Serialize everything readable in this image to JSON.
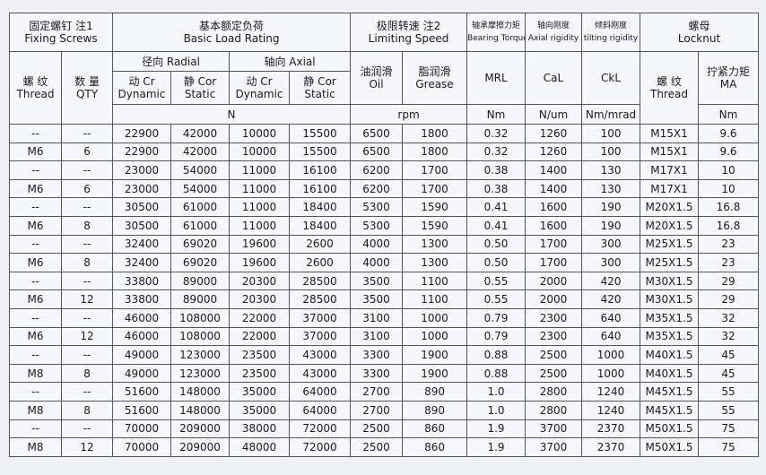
{
  "header": {
    "fixing_screws": {
      "zh": "固定螺钉  注1",
      "en": "Fixing Screws"
    },
    "basic_load_rating": {
      "zh": "基本额定负荷",
      "en": "Basic Load Rating"
    },
    "limiting_speed": {
      "zh": "极限转速  注2",
      "en": "Limiting Speed"
    },
    "bearing_torque": {
      "zh": "轴承摩擦力矩",
      "en": "Bearing Torque"
    },
    "axial_rigidity": {
      "zh": "轴向刚度",
      "en": "Axial rigidity"
    },
    "tilting_rigidity": {
      "zh": "倾斜刚度",
      "en": "tilting rigidity"
    },
    "locknut": {
      "zh": "螺母",
      "en": "Locknut"
    },
    "thread": {
      "zh": "螺 纹",
      "en": "Thread"
    },
    "qty": {
      "zh": "数 量",
      "en": "QTY"
    },
    "radial": "径向 Radial",
    "axial": "轴向 Axial",
    "radial_dynamic": {
      "zh": "动 Cr",
      "en": "Dynamic"
    },
    "radial_static": {
      "zh": "静 Cor",
      "en": "Static"
    },
    "axial_dynamic": {
      "zh": "动 Cr",
      "en": "Dynamic"
    },
    "axial_static": {
      "zh": "静 Cor",
      "en": "Static"
    },
    "oil": {
      "zh": "油润滑",
      "en": "Oil"
    },
    "grease": {
      "zh": "脂润滑",
      "en": "Grease"
    },
    "mrl": "MRL",
    "cal": "CaL",
    "ckl": "CkL",
    "nut_thread": {
      "zh": "螺 纹",
      "en": "Thread"
    },
    "ma": {
      "zh": "拧紧力矩",
      "en": "MA"
    },
    "unit_load": "N",
    "unit_speed": "rpm",
    "unit_torque": "Nm",
    "unit_axial": "N/um",
    "unit_tilt": "Nm/mrad",
    "unit_ma": "Nm"
  },
  "table": {
    "rows": [
      [
        "--",
        "--",
        "22900",
        "42000",
        "10000",
        "15500",
        "6500",
        "1800",
        "0.32",
        "1260",
        "100",
        "M15X1",
        "9.6"
      ],
      [
        "M6",
        "6",
        "22900",
        "42000",
        "10000",
        "15500",
        "6500",
        "1800",
        "0.32",
        "1260",
        "100",
        "M15X1",
        "9.6"
      ],
      [
        "--",
        "--",
        "23000",
        "54000",
        "11000",
        "16100",
        "6200",
        "1700",
        "0.38",
        "1400",
        "130",
        "M17X1",
        "10"
      ],
      [
        "M6",
        "6",
        "23000",
        "54000",
        "11000",
        "16100",
        "6200",
        "1700",
        "0.38",
        "1400",
        "130",
        "M17X1",
        "10"
      ],
      [
        "--",
        "--",
        "30500",
        "61000",
        "11000",
        "18400",
        "5300",
        "1590",
        "0.41",
        "1600",
        "190",
        "M20X1.5",
        "16.8"
      ],
      [
        "M6",
        "8",
        "30500",
        "61000",
        "11000",
        "18400",
        "5300",
        "1590",
        "0.41",
        "1600",
        "190",
        "M20X1.5",
        "16.8"
      ],
      [
        "--",
        "--",
        "32400",
        "69020",
        "19600",
        "2600",
        "4000",
        "1300",
        "0.50",
        "1700",
        "300",
        "M25X1.5",
        "23"
      ],
      [
        "M6",
        "8",
        "32400",
        "69020",
        "19600",
        "2600",
        "4000",
        "1300",
        "0.50",
        "1700",
        "300",
        "M25X1.5",
        "23"
      ],
      [
        "--",
        "--",
        "33800",
        "89000",
        "20300",
        "28500",
        "3500",
        "1100",
        "0.55",
        "2000",
        "420",
        "M30X1.5",
        "29"
      ],
      [
        "M6",
        "12",
        "33800",
        "89000",
        "20300",
        "28500",
        "3500",
        "1100",
        "0.55",
        "2000",
        "420",
        "M30X1.5",
        "29"
      ],
      [
        "--",
        "--",
        "46000",
        "108000",
        "22000",
        "37000",
        "3100",
        "1000",
        "0.79",
        "2300",
        "640",
        "M35X1.5",
        "32"
      ],
      [
        "M6",
        "12",
        "46000",
        "108000",
        "22000",
        "37000",
        "3100",
        "1000",
        "0.79",
        "2300",
        "640",
        "M35X1.5",
        "32"
      ],
      [
        "--",
        "--",
        "49000",
        "123000",
        "23500",
        "43000",
        "3300",
        "1900",
        "0.88",
        "2500",
        "1000",
        "M40X1.5",
        "45"
      ],
      [
        "M8",
        "8",
        "49000",
        "123000",
        "23500",
        "43000",
        "3300",
        "1900",
        "0.88",
        "2500",
        "1000",
        "M40X1.5",
        "45"
      ],
      [
        "--",
        "--",
        "51600",
        "148000",
        "35000",
        "64000",
        "2700",
        "890",
        "1.0",
        "2800",
        "1240",
        "M45X1.5",
        "55"
      ],
      [
        "M8",
        "8",
        "51600",
        "148000",
        "35000",
        "64000",
        "2700",
        "890",
        "1.0",
        "2800",
        "1240",
        "M45X1.5",
        "55"
      ],
      [
        "--",
        "--",
        "70000",
        "209000",
        "38000",
        "72000",
        "2500",
        "860",
        "1.9",
        "3700",
        "2370",
        "M50X1.5",
        "75"
      ],
      [
        "M8",
        "12",
        "70000",
        "209000",
        "48000",
        "72000",
        "2500",
        "860",
        "1.9",
        "3700",
        "2370",
        "M50X1.5",
        "75"
      ]
    ]
  }
}
